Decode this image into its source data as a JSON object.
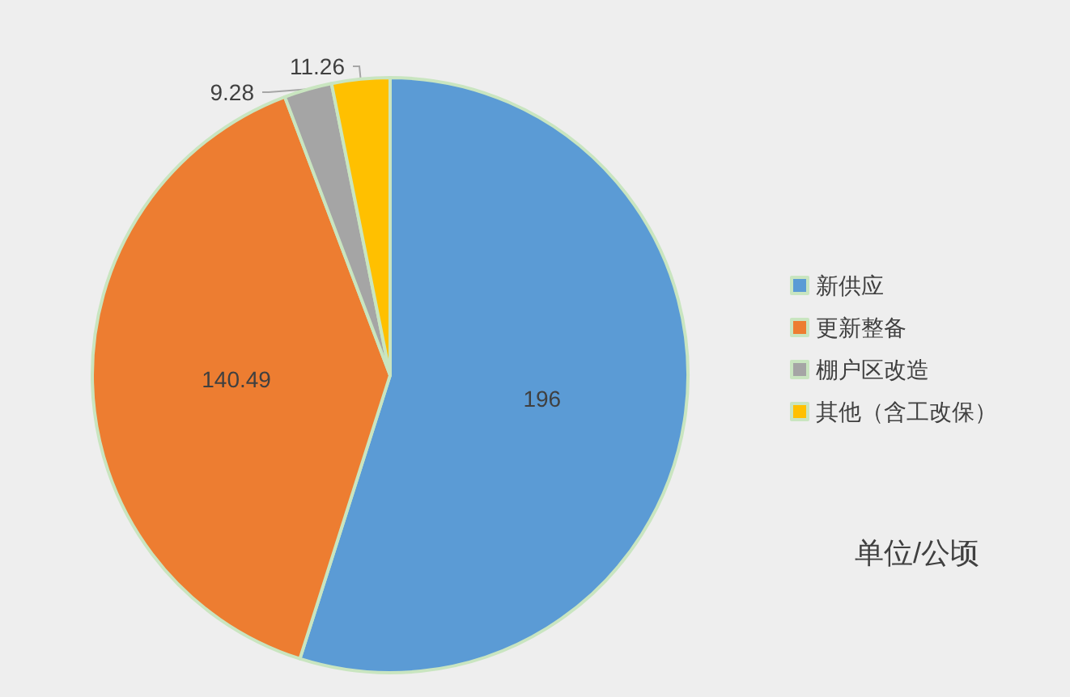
{
  "chart_data": {
    "type": "pie",
    "categories": [
      "新供应",
      "更新整备",
      "棚户区改造",
      "其他（含工改保）"
    ],
    "values": [
      196,
      140.49,
      9.28,
      11.26
    ],
    "colors": [
      "#5b9bd5",
      "#ed7d31",
      "#a5a5a5",
      "#ffc000"
    ],
    "data_labels": true,
    "legend": "right",
    "annotations": [
      "单位/公顷"
    ]
  }
}
